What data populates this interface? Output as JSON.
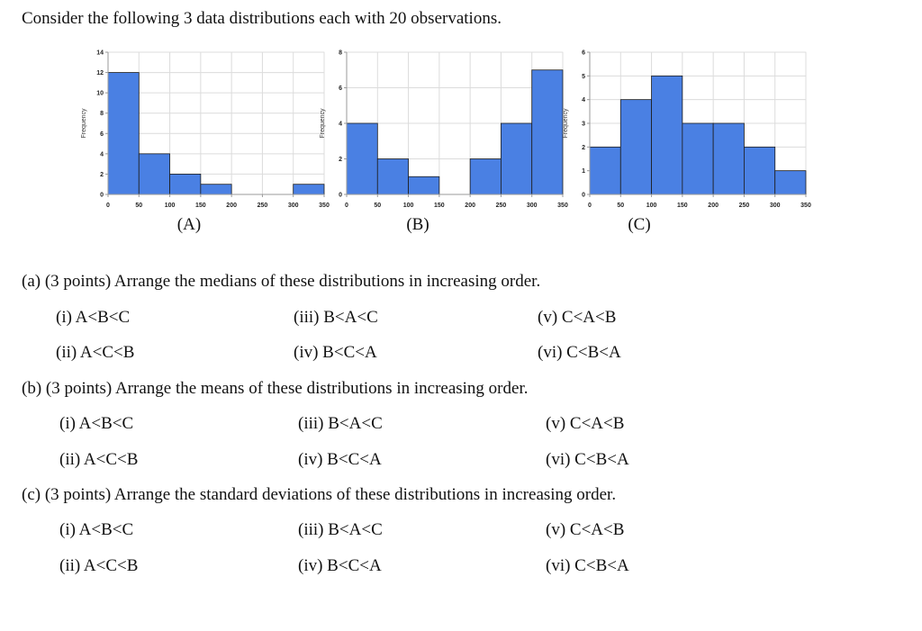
{
  "intro": "Consider the following 3 data distributions each with 20 observations.",
  "colors": {
    "bar": "#4a80e3",
    "bar_edge": "#1e1e1e",
    "grid": "#dcdcdc",
    "axis": "#9a9a9a"
  },
  "chart_data": [
    {
      "type": "bar",
      "caption": "(A)",
      "ylabel": "Frequency",
      "bin_edges": [
        0,
        50,
        100,
        150,
        200,
        250,
        300,
        350
      ],
      "values": [
        12,
        4,
        2,
        1,
        0,
        0,
        1
      ],
      "ylim": [
        0,
        14
      ],
      "yticks": [
        0,
        2,
        4,
        6,
        8,
        10,
        12,
        14
      ],
      "xticks": [
        0,
        50,
        100,
        150,
        200,
        250,
        300,
        350
      ],
      "grid": true
    },
    {
      "type": "bar",
      "caption": "(B)",
      "ylabel": "Frequency",
      "bin_edges": [
        0,
        50,
        100,
        150,
        200,
        250,
        300,
        350
      ],
      "values": [
        4,
        2,
        1,
        0,
        2,
        4,
        7
      ],
      "ylim": [
        0,
        8
      ],
      "yticks": [
        0,
        2,
        4,
        6,
        8
      ],
      "xticks": [
        0,
        50,
        100,
        150,
        200,
        250,
        300,
        350
      ],
      "grid": true
    },
    {
      "type": "bar",
      "caption": "(C)",
      "ylabel": "Frequency",
      "bin_edges": [
        0,
        50,
        100,
        150,
        200,
        250,
        300,
        350
      ],
      "values": [
        2,
        4,
        5,
        3,
        3,
        2,
        1
      ],
      "ylim": [
        0,
        6
      ],
      "yticks": [
        0,
        1,
        2,
        3,
        4,
        5,
        6
      ],
      "xticks": [
        0,
        50,
        100,
        150,
        200,
        250,
        300,
        350
      ],
      "grid": true
    }
  ],
  "questions": [
    {
      "text": "(a)  (3 points) Arrange the medians of these distributions in increasing order.",
      "options": [
        "(i) A<B<C",
        "(iii) B<A<C",
        "(v)  C<A<B",
        "(ii) A<C<B",
        "(iv) B<C<A",
        "(vi)  C<B<A"
      ]
    },
    {
      "text": "(b)  (3 points) Arrange the means of these distributions in increasing order.",
      "options": [
        "(i) A<B<C",
        "(iii) B<A<C",
        "(v)  C<A<B",
        "(ii) A<C<B",
        "(iv) B<C<A",
        "(vi)  C<B<A"
      ]
    },
    {
      "text": "(c)  (3 points) Arrange the standard deviations of these distributions in increasing order.",
      "options": [
        "(i) A<B<C",
        "(iii) B<A<C",
        "(v)  C<A<B",
        "(ii) A<C<B",
        "(iv) B<C<A",
        "(vi)  C<B<A"
      ]
    }
  ]
}
